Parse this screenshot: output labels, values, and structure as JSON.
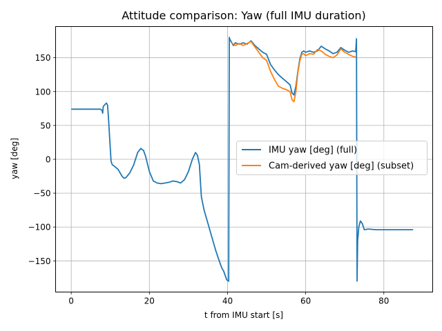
{
  "chart_data": {
    "type": "line",
    "title": "Attitude comparison: Yaw (full IMU duration)",
    "xlabel": "t from IMU start [s]",
    "ylabel": "yaw [deg]",
    "xlim": [
      -4,
      92.5
    ],
    "ylim": [
      -196,
      196
    ],
    "xticks": [
      0,
      20,
      40,
      60,
      80
    ],
    "yticks": [
      -150,
      -100,
      -50,
      0,
      50,
      100,
      150
    ],
    "grid": true,
    "legend_position": "center-right",
    "colors": {
      "imu": "#1f77b4",
      "cam": "#ff7f0e"
    },
    "series": [
      {
        "name": "IMU yaw [deg] (full)",
        "color": "#1f77b4",
        "x": [
          0,
          2,
          4,
          6,
          7.5,
          7.9,
          8.05,
          8.2,
          8.5,
          9,
          9.3,
          9.6,
          9.9,
          10.2,
          10.5,
          11,
          12,
          13,
          13.5,
          14,
          15,
          16,
          17,
          17.8,
          18.5,
          19,
          20,
          21,
          22,
          23,
          24,
          25,
          26,
          27,
          28,
          29,
          30,
          31,
          31.8,
          32.3,
          32.8,
          33.3,
          34,
          35,
          36,
          37,
          38,
          38.5,
          39,
          39.8,
          40.3,
          40.45,
          40.6,
          41,
          41.5,
          42,
          43,
          44,
          45,
          46,
          47,
          48,
          49,
          50,
          51,
          52,
          53,
          54,
          55,
          56,
          56.5,
          57,
          57.5,
          58,
          58.5,
          59,
          59.5,
          60,
          61,
          62,
          63,
          64,
          65,
          66,
          67,
          68,
          69,
          70,
          71,
          72,
          72.8,
          73,
          73.15,
          73.3,
          73.6,
          74,
          74.5,
          75,
          76,
          78,
          80,
          82,
          84,
          86,
          87.5
        ],
        "y": [
          74,
          74,
          74,
          74,
          74,
          72,
          68,
          78,
          80,
          83,
          80,
          55,
          25,
          -3,
          -8,
          -10,
          -15,
          -25,
          -28,
          -27,
          -20,
          -8,
          10,
          16,
          13,
          5,
          -18,
          -32,
          -35,
          -36,
          -35,
          -34,
          -32,
          -33,
          -35,
          -30,
          -18,
          0,
          10,
          6,
          -8,
          -55,
          -75,
          -95,
          -115,
          -135,
          -152,
          -160,
          -165,
          -178,
          -180,
          180,
          177,
          173,
          168,
          172,
          170,
          172,
          170,
          175,
          168,
          163,
          158,
          155,
          140,
          132,
          125,
          120,
          115,
          110,
          98,
          95,
          108,
          130,
          148,
          158,
          160,
          158,
          160,
          158,
          160,
          167,
          163,
          160,
          156,
          158,
          165,
          161,
          158,
          160,
          159,
          178,
          -180,
          -120,
          -100,
          -91,
          -95,
          -104,
          -103,
          -104,
          -104,
          -104,
          -104,
          -104,
          -104
        ]
      },
      {
        "name": "Cam-derived yaw [deg] (subset)",
        "color": "#ff7f0e",
        "x": [
          41,
          42,
          43,
          44,
          45,
          46,
          47,
          48,
          49,
          50,
          51,
          52,
          53,
          54,
          55,
          56,
          56.5,
          57,
          57.5,
          58,
          58.5,
          59,
          59.5,
          60,
          61,
          62,
          63,
          64,
          65,
          66,
          67,
          68,
          69,
          70,
          71,
          72,
          72.8
        ],
        "y": [
          172,
          168,
          171,
          168,
          171,
          174,
          166,
          158,
          150,
          146,
          130,
          118,
          108,
          105,
          103,
          100,
          88,
          85,
          100,
          128,
          145,
          155,
          156,
          153,
          156,
          155,
          162,
          160,
          155,
          152,
          150,
          154,
          163,
          158,
          155,
          152,
          151
        ]
      }
    ]
  }
}
